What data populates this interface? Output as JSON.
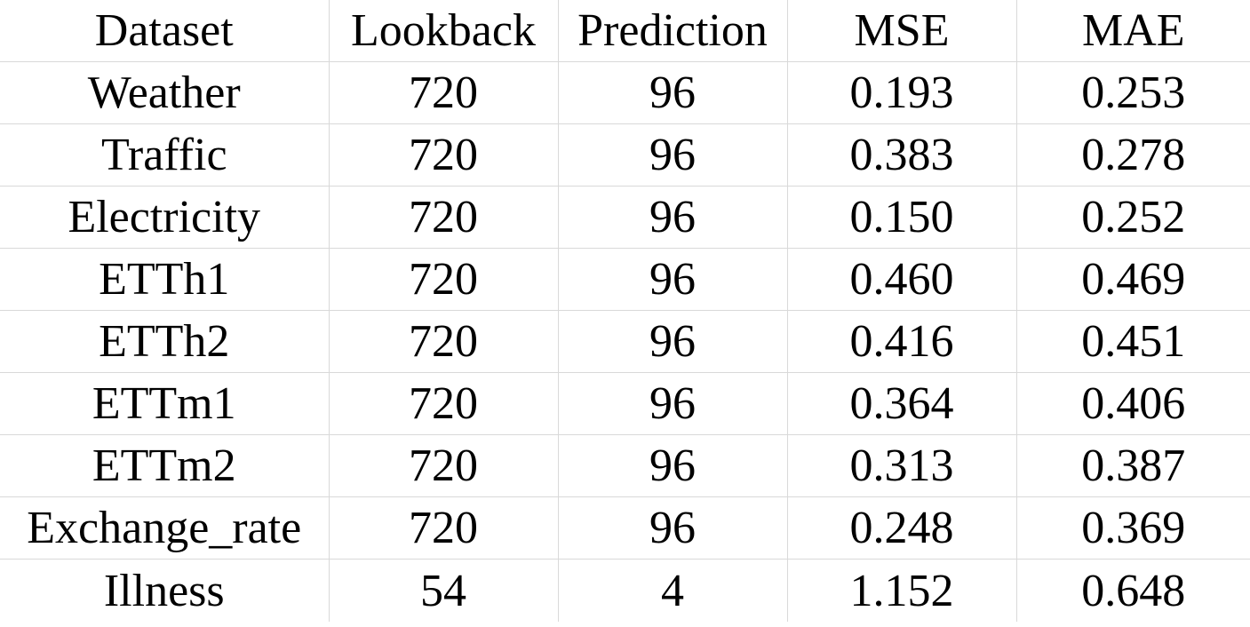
{
  "table": {
    "headers": [
      "Dataset",
      "Lookback",
      "Prediction",
      "MSE",
      "MAE"
    ],
    "rows": [
      [
        "Weather",
        "720",
        "96",
        "0.193",
        "0.253"
      ],
      [
        "Traffic",
        "720",
        "96",
        "0.383",
        "0.278"
      ],
      [
        "Electricity",
        "720",
        "96",
        "0.150",
        "0.252"
      ],
      [
        "ETTh1",
        "720",
        "96",
        "0.460",
        "0.469"
      ],
      [
        "ETTh2",
        "720",
        "96",
        "0.416",
        "0.451"
      ],
      [
        "ETTm1",
        "720",
        "96",
        "0.364",
        "0.406"
      ],
      [
        "ETTm2",
        "720",
        "96",
        "0.313",
        "0.387"
      ],
      [
        "Exchange_rate",
        "720",
        "96",
        "0.248",
        "0.369"
      ],
      [
        "Illness",
        "54",
        "4",
        "1.152",
        "0.648"
      ]
    ]
  }
}
